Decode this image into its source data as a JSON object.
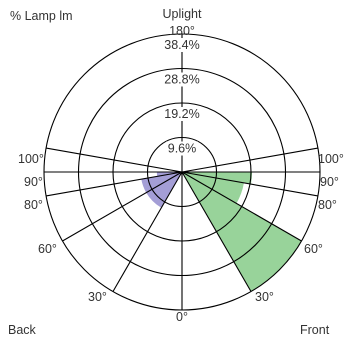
{
  "chart_data": {
    "type": "polar",
    "title": "",
    "left_header": "% Lamp lm",
    "top_label": "Uplight",
    "bottom_left_label": "Back",
    "bottom_right_label": "Front",
    "rings": [
      "9.6%",
      "19.2%",
      "28.8%",
      "38.4%"
    ],
    "ring_values": [
      9.6,
      19.2,
      28.8,
      38.4
    ],
    "axis_max": 38.4,
    "zone_angles": [
      0,
      30,
      60,
      80,
      90,
      100,
      180
    ],
    "angle_labels": {
      "top": "180°",
      "bottom": "0°",
      "left": [
        "100°",
        "90°",
        "80°",
        "60°",
        "30°"
      ],
      "right": [
        "100°",
        "90°",
        "80°",
        "60°",
        "30°"
      ]
    },
    "series": [
      {
        "name": "Front",
        "color": "#98d39a",
        "zones": [
          {
            "from": 0,
            "to": 30,
            "value": 0
          },
          {
            "from": 30,
            "to": 60,
            "value": 38.4
          },
          {
            "from": 60,
            "to": 80,
            "value": 17.5
          },
          {
            "from": 80,
            "to": 90,
            "value": 19.5
          },
          {
            "from": 90,
            "to": 100,
            "value": 0
          },
          {
            "from": 100,
            "to": 180,
            "value": 0
          }
        ]
      },
      {
        "name": "Back",
        "color": "#a49ed6",
        "zones": [
          {
            "from": 0,
            "to": 30,
            "value": 0
          },
          {
            "from": 30,
            "to": 60,
            "value": 11.5
          },
          {
            "from": 60,
            "to": 80,
            "value": 11.5
          },
          {
            "from": 80,
            "to": 90,
            "value": 7.0
          },
          {
            "from": 90,
            "to": 100,
            "value": 0
          },
          {
            "from": 100,
            "to": 180,
            "value": 0
          }
        ]
      }
    ]
  }
}
